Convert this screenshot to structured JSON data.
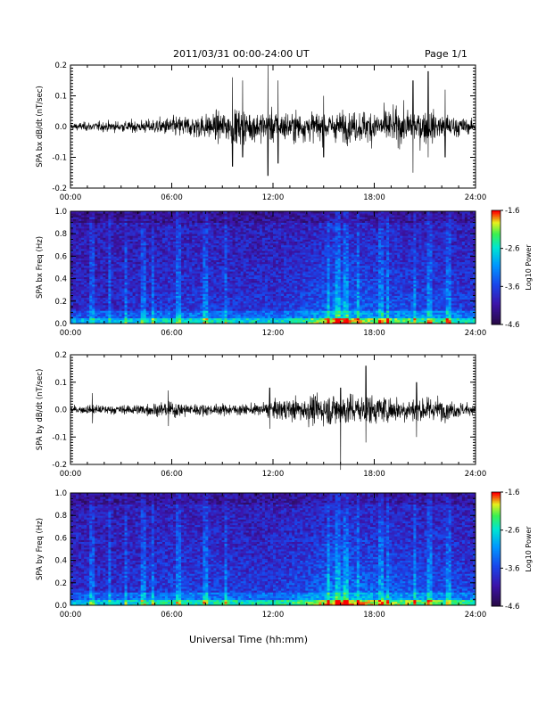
{
  "header": {
    "title": "2011/03/31  00:00-24:00 UT",
    "page_label": "Page 1/1"
  },
  "footer": {
    "xlabel": "Universal Time (hh:mm)"
  },
  "chart_data": [
    {
      "type": "line",
      "ylabel": "SPA bx dB/dt (nT/sec)",
      "xlim": [
        "00:00",
        "24:00"
      ],
      "ylim": [
        -0.2,
        0.2
      ],
      "xticks": [
        "00:00",
        "06:00",
        "12:00",
        "18:00",
        "24:00"
      ],
      "yticks": [
        "-0.2",
        "-0.1",
        "0.0",
        "0.1",
        "0.2"
      ],
      "series": [
        {
          "x_hours": [
            0,
            1,
            2,
            3,
            4,
            5,
            6,
            7,
            8,
            9,
            10,
            11,
            12,
            13,
            14,
            15,
            16,
            17,
            18,
            19,
            20,
            21,
            22,
            23,
            24
          ],
          "amplitude": [
            0.015,
            0.018,
            0.02,
            0.022,
            0.025,
            0.03,
            0.04,
            0.045,
            0.05,
            0.06,
            0.07,
            0.06,
            0.065,
            0.06,
            0.06,
            0.055,
            0.06,
            0.06,
            0.07,
            0.07,
            0.07,
            0.065,
            0.06,
            0.04,
            0.02
          ],
          "peaks": [
            {
              "t": 9.6,
              "min": -0.13,
              "max": 0.16
            },
            {
              "t": 10.2,
              "min": -0.1,
              "max": 0.15
            },
            {
              "t": 11.7,
              "min": -0.16,
              "max": 0.2
            },
            {
              "t": 12.3,
              "min": -0.12,
              "max": 0.15
            },
            {
              "t": 15.0,
              "min": -0.1,
              "max": 0.1
            },
            {
              "t": 20.3,
              "min": -0.15,
              "max": 0.15
            },
            {
              "t": 21.2,
              "min": -0.1,
              "max": 0.18
            },
            {
              "t": 22.2,
              "min": -0.1,
              "max": 0.12
            }
          ]
        }
      ]
    },
    {
      "type": "heatmap",
      "ylabel": "SPA bx Freq (Hz)",
      "xlim": [
        "00:00",
        "24:00"
      ],
      "ylim": [
        0.0,
        1.0
      ],
      "xticks": [
        "00:00",
        "06:00",
        "12:00",
        "18:00",
        "24:00"
      ],
      "yticks": [
        "0.0",
        "0.2",
        "0.4",
        "0.6",
        "0.8",
        "1.0"
      ],
      "colorbar": {
        "label": "Log10 Power",
        "ticks": [
          "-1.6",
          "-2.6",
          "-3.6",
          "-4.6"
        ],
        "range": [
          -4.6,
          -1.6
        ]
      },
      "activity_hours": [
        0,
        2,
        4,
        6,
        8,
        10,
        12,
        14,
        15.7,
        18,
        20,
        22,
        24
      ],
      "activity_level": [
        0.15,
        0.2,
        0.25,
        0.35,
        0.35,
        0.3,
        0.3,
        0.45,
        0.75,
        0.55,
        0.5,
        0.45,
        0.35
      ],
      "bright_streaks_hours": [
        1.3,
        2.3,
        3.3,
        4.3,
        4.9,
        6.4,
        8.0,
        9.2,
        15.3,
        15.8,
        16.3,
        17.0,
        18.4,
        18.8,
        20.4,
        21.3,
        22.4
      ]
    },
    {
      "type": "line",
      "ylabel": "SPA by dB/dt (nT/sec)",
      "xlim": [
        "00:00",
        "24:00"
      ],
      "ylim": [
        -0.2,
        0.2
      ],
      "xticks": [
        "00:00",
        "06:00",
        "12:00",
        "18:00",
        "24:00"
      ],
      "yticks": [
        "-0.2",
        "-0.1",
        "0.0",
        "0.1",
        "0.2"
      ],
      "series": [
        {
          "x_hours": [
            0,
            1,
            2,
            3,
            4,
            5,
            6,
            7,
            8,
            9,
            10,
            11,
            12,
            13,
            14,
            15,
            16,
            17,
            18,
            19,
            20,
            21,
            22,
            23,
            24
          ],
          "amplitude": [
            0.015,
            0.02,
            0.02,
            0.02,
            0.025,
            0.03,
            0.035,
            0.03,
            0.025,
            0.025,
            0.025,
            0.025,
            0.04,
            0.05,
            0.06,
            0.07,
            0.075,
            0.07,
            0.065,
            0.06,
            0.06,
            0.055,
            0.05,
            0.035,
            0.02
          ],
          "peaks": [
            {
              "t": 1.3,
              "min": -0.05,
              "max": 0.06
            },
            {
              "t": 5.8,
              "min": -0.06,
              "max": 0.07
            },
            {
              "t": 11.8,
              "min": -0.07,
              "max": 0.08
            },
            {
              "t": 16.0,
              "min": -0.22,
              "max": 0.08
            },
            {
              "t": 17.5,
              "min": -0.12,
              "max": 0.16
            },
            {
              "t": 20.5,
              "min": -0.1,
              "max": 0.1
            }
          ]
        }
      ]
    },
    {
      "type": "heatmap",
      "ylabel": "SPA by Freq (Hz)",
      "xlim": [
        "00:00",
        "24:00"
      ],
      "ylim": [
        0.0,
        1.0
      ],
      "xticks": [
        "00:00",
        "06:00",
        "12:00",
        "18:00",
        "24:00"
      ],
      "yticks": [
        "0.0",
        "0.2",
        "0.4",
        "0.6",
        "0.8",
        "1.0"
      ],
      "colorbar": {
        "label": "Log10 Power",
        "ticks": [
          "-1.6",
          "-2.6",
          "-3.6",
          "-4.6"
        ],
        "range": [
          -4.6,
          -1.6
        ]
      },
      "activity_hours": [
        0,
        2,
        4,
        6,
        8,
        10,
        12,
        14,
        15.7,
        18,
        20,
        22,
        24
      ],
      "activity_level": [
        0.2,
        0.25,
        0.3,
        0.4,
        0.4,
        0.35,
        0.35,
        0.5,
        0.8,
        0.6,
        0.55,
        0.5,
        0.4
      ],
      "bright_streaks_hours": [
        1.3,
        2.3,
        3.3,
        4.3,
        4.9,
        6.4,
        8.0,
        9.2,
        15.3,
        15.8,
        16.3,
        17.0,
        18.4,
        18.8,
        20.4,
        21.3,
        22.4
      ]
    }
  ]
}
